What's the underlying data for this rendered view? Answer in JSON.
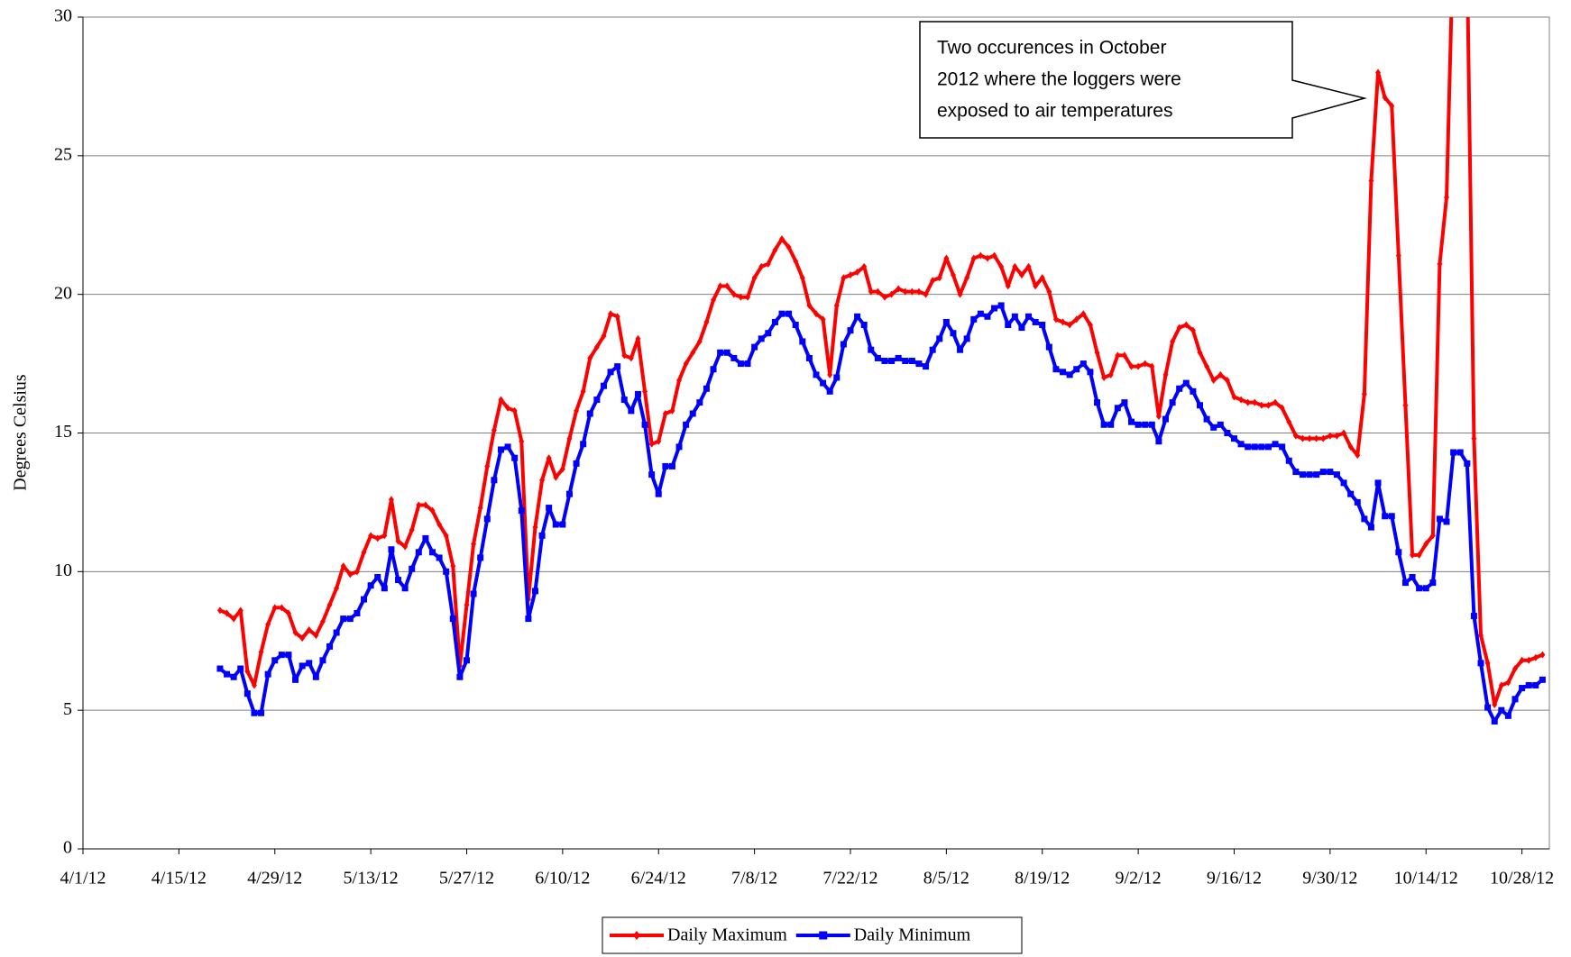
{
  "chart_data": {
    "type": "line",
    "y_label": "Degrees Celsius",
    "annotation": [
      "Two occurences in October",
      "2012 where the loggers were",
      "exposed to air temperatures"
    ],
    "x": [
      "4/21/12",
      "4/22/12",
      "4/23/12",
      "4/24/12",
      "4/25/12",
      "4/26/12",
      "4/27/12",
      "4/28/12",
      "4/29/12",
      "4/30/12",
      "5/1/12",
      "5/2/12",
      "5/3/12",
      "5/4/12",
      "5/5/12",
      "5/6/12",
      "5/7/12",
      "5/8/12",
      "5/9/12",
      "5/10/12",
      "5/11/12",
      "5/12/12",
      "5/13/12",
      "5/14/12",
      "5/15/12",
      "5/16/12",
      "5/17/12",
      "5/18/12",
      "5/19/12",
      "5/20/12",
      "5/21/12",
      "5/22/12",
      "5/23/12",
      "5/24/12",
      "5/25/12",
      "5/26/12",
      "5/27/12",
      "5/28/12",
      "5/29/12",
      "5/30/12",
      "5/31/12",
      "6/1/12",
      "6/2/12",
      "6/3/12",
      "6/4/12",
      "6/5/12",
      "6/6/12",
      "6/7/12",
      "6/8/12",
      "6/9/12",
      "6/10/12",
      "6/11/12",
      "6/12/12",
      "6/13/12",
      "6/14/12",
      "6/15/12",
      "6/16/12",
      "6/17/12",
      "6/18/12",
      "6/19/12",
      "6/20/12",
      "6/21/12",
      "6/22/12",
      "6/23/12",
      "6/24/12",
      "6/25/12",
      "6/26/12",
      "6/27/12",
      "6/28/12",
      "6/29/12",
      "6/30/12",
      "7/1/12",
      "7/2/12",
      "7/3/12",
      "7/4/12",
      "7/5/12",
      "7/6/12",
      "7/7/12",
      "7/8/12",
      "7/9/12",
      "7/10/12",
      "7/11/12",
      "7/12/12",
      "7/13/12",
      "7/14/12",
      "7/15/12",
      "7/16/12",
      "7/17/12",
      "7/18/12",
      "7/19/12",
      "7/20/12",
      "7/21/12",
      "7/22/12",
      "7/23/12",
      "7/24/12",
      "7/25/12",
      "7/26/12",
      "7/27/12",
      "7/28/12",
      "7/29/12",
      "7/30/12",
      "7/31/12",
      "8/1/12",
      "8/2/12",
      "8/3/12",
      "8/4/12",
      "8/5/12",
      "8/6/12",
      "8/7/12",
      "8/8/12",
      "8/9/12",
      "8/10/12",
      "8/11/12",
      "8/12/12",
      "8/13/12",
      "8/14/12",
      "8/15/12",
      "8/16/12",
      "8/17/12",
      "8/18/12",
      "8/19/12",
      "8/20/12",
      "8/21/12",
      "8/22/12",
      "8/23/12",
      "8/24/12",
      "8/25/12",
      "8/26/12",
      "8/27/12",
      "8/28/12",
      "8/29/12",
      "8/30/12",
      "8/31/12",
      "9/1/12",
      "9/2/12",
      "9/3/12",
      "9/4/12",
      "9/5/12",
      "9/6/12",
      "9/7/12",
      "9/8/12",
      "9/9/12",
      "9/10/12",
      "9/11/12",
      "9/12/12",
      "9/13/12",
      "9/14/12",
      "9/15/12",
      "9/16/12",
      "9/17/12",
      "9/18/12",
      "9/19/12",
      "9/20/12",
      "9/21/12",
      "9/22/12",
      "9/23/12",
      "9/24/12",
      "9/25/12",
      "9/26/12",
      "9/27/12",
      "9/28/12",
      "9/29/12",
      "9/30/12",
      "10/1/12",
      "10/2/12",
      "10/3/12",
      "10/4/12",
      "10/5/12",
      "10/6/12",
      "10/7/12",
      "10/8/12",
      "10/9/12",
      "10/10/12",
      "10/11/12",
      "10/12/12",
      "10/13/12",
      "10/14/12",
      "10/15/12",
      "10/16/12",
      "10/17/12",
      "10/18/12",
      "10/19/12",
      "10/20/12",
      "10/21/12",
      "10/22/12",
      "10/23/12",
      "10/24/12",
      "10/25/12",
      "10/26/12",
      "10/27/12",
      "10/28/12",
      "10/29/12",
      "10/30/12",
      "10/31/12"
    ],
    "series": [
      {
        "name": "Daily Maximum",
        "color": "#ff0000",
        "marker": "diamond",
        "values": [
          8.6,
          8.5,
          8.3,
          8.6,
          6.4,
          5.9,
          7.1,
          8.1,
          8.7,
          8.7,
          8.5,
          7.8,
          7.6,
          7.9,
          7.7,
          8.2,
          8.8,
          9.4,
          10.2,
          9.9,
          10.0,
          10.7,
          11.3,
          11.2,
          11.3,
          12.6,
          11.1,
          10.9,
          11.5,
          12.4,
          12.4,
          12.2,
          11.7,
          11.3,
          10.2,
          6.6,
          8.8,
          11.0,
          12.3,
          13.8,
          15.1,
          16.2,
          15.9,
          15.8,
          14.7,
          9.0,
          11.6,
          13.3,
          14.1,
          13.4,
          13.7,
          14.8,
          15.8,
          16.5,
          17.7,
          18.1,
          18.5,
          19.3,
          19.2,
          17.8,
          17.7,
          18.4,
          16.5,
          14.6,
          14.7,
          15.7,
          15.8,
          16.9,
          17.5,
          17.9,
          18.3,
          19.0,
          19.8,
          20.3,
          20.3,
          20.0,
          19.9,
          19.9,
          20.6,
          21.0,
          21.1,
          21.6,
          22.0,
          21.7,
          21.2,
          20.6,
          19.6,
          19.3,
          19.1,
          17.1,
          19.6,
          20.6,
          20.7,
          20.8,
          21.0,
          20.1,
          20.1,
          19.9,
          20.0,
          20.2,
          20.1,
          20.1,
          20.1,
          20.0,
          20.5,
          20.6,
          21.3,
          20.7,
          20.0,
          20.6,
          21.3,
          21.4,
          21.3,
          21.4,
          21.0,
          20.3,
          21.0,
          20.7,
          21.0,
          20.3,
          20.6,
          20.1,
          19.1,
          19.0,
          18.9,
          19.1,
          19.3,
          18.9,
          17.9,
          17.0,
          17.1,
          17.8,
          17.8,
          17.4,
          17.4,
          17.5,
          17.4,
          15.6,
          17.1,
          18.3,
          18.8,
          18.9,
          18.7,
          17.9,
          17.4,
          16.9,
          17.1,
          16.9,
          16.3,
          16.2,
          16.1,
          16.1,
          16.0,
          16.0,
          16.1,
          15.9,
          15.4,
          14.9,
          14.8,
          14.8,
          14.8,
          14.8,
          14.9,
          14.9,
          15.0,
          14.5,
          14.2,
          16.4,
          24.1,
          28.0,
          27.1,
          26.8,
          21.4,
          16.0,
          10.6,
          10.6,
          11.0,
          11.3,
          21.1,
          23.5,
          33,
          34,
          32,
          14.8,
          7.7,
          6.7,
          5.2,
          5.9,
          6.0,
          6.5,
          6.8,
          6.8,
          6.9,
          7.0
        ]
      },
      {
        "name": "Daily Minimum",
        "color": "#0000ff",
        "marker": "square",
        "values": [
          6.5,
          6.3,
          6.2,
          6.5,
          5.6,
          4.9,
          4.9,
          6.3,
          6.8,
          7.0,
          7.0,
          6.1,
          6.6,
          6.7,
          6.2,
          6.8,
          7.3,
          7.8,
          8.3,
          8.3,
          8.5,
          9.0,
          9.5,
          9.8,
          9.4,
          10.8,
          9.7,
          9.4,
          10.1,
          10.7,
          11.2,
          10.7,
          10.5,
          10.0,
          8.3,
          6.2,
          6.8,
          9.2,
          10.5,
          11.9,
          13.3,
          14.4,
          14.5,
          14.1,
          12.2,
          8.3,
          9.3,
          11.3,
          12.3,
          11.7,
          11.7,
          12.8,
          13.9,
          14.6,
          15.7,
          16.2,
          16.7,
          17.2,
          17.4,
          16.2,
          15.8,
          16.4,
          15.3,
          13.5,
          12.8,
          13.8,
          13.8,
          14.5,
          15.3,
          15.7,
          16.1,
          16.6,
          17.3,
          17.9,
          17.9,
          17.7,
          17.5,
          17.5,
          18.1,
          18.4,
          18.6,
          19.0,
          19.3,
          19.3,
          18.9,
          18.3,
          17.7,
          17.1,
          16.8,
          16.5,
          17.0,
          18.2,
          18.7,
          19.2,
          18.9,
          18.0,
          17.7,
          17.6,
          17.6,
          17.7,
          17.6,
          17.6,
          17.5,
          17.4,
          18.0,
          18.4,
          19.0,
          18.6,
          18.0,
          18.4,
          19.1,
          19.3,
          19.2,
          19.5,
          19.6,
          18.9,
          19.2,
          18.8,
          19.2,
          19.0,
          18.9,
          18.1,
          17.3,
          17.2,
          17.1,
          17.3,
          17.5,
          17.2,
          16.1,
          15.3,
          15.3,
          15.9,
          16.1,
          15.4,
          15.3,
          15.3,
          15.3,
          14.7,
          15.5,
          16.1,
          16.6,
          16.8,
          16.5,
          16.0,
          15.5,
          15.2,
          15.3,
          15.0,
          14.8,
          14.6,
          14.5,
          14.5,
          14.5,
          14.5,
          14.6,
          14.5,
          14.0,
          13.6,
          13.5,
          13.5,
          13.5,
          13.6,
          13.6,
          13.5,
          13.2,
          12.8,
          12.5,
          11.9,
          11.6,
          13.2,
          12.0,
          12.0,
          10.7,
          9.6,
          9.8,
          9.4,
          9.4,
          9.6,
          11.9,
          11.8,
          14.3,
          14.3,
          13.9,
          8.4,
          6.7,
          5.1,
          4.6,
          5.0,
          4.8,
          5.4,
          5.8,
          5.9,
          5.9,
          6.1
        ]
      }
    ],
    "xlim": [
      "4/1/12",
      "11/1/12"
    ],
    "xticks": [
      "4/1/12",
      "4/15/12",
      "4/29/12",
      "5/13/12",
      "5/27/12",
      "6/10/12",
      "6/24/12",
      "7/8/12",
      "7/22/12",
      "8/5/12",
      "8/19/12",
      "9/2/12",
      "9/16/12",
      "9/30/12",
      "10/14/12",
      "10/28/12"
    ],
    "ylim": [
      0,
      30
    ],
    "yticks": [
      0,
      5,
      10,
      15,
      20,
      25,
      30
    ],
    "grid": true,
    "legend": "bottom"
  }
}
